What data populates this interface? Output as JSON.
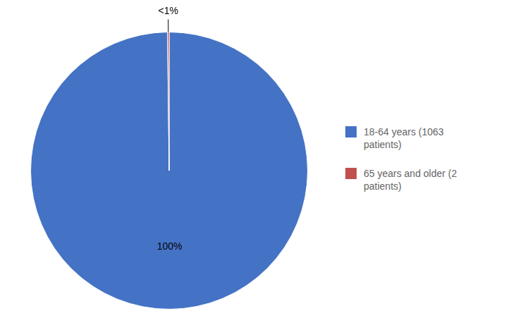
{
  "chart_data": {
    "type": "pie",
    "categories": [
      "18-64 years (1063\npatients)",
      "65 years and older (2\npatients)"
    ],
    "values": [
      99.81,
      0.19
    ],
    "value_labels": [
      "100%",
      "<1%"
    ],
    "colors": [
      "#4472C4",
      "#C0504D"
    ],
    "data_labels": true,
    "legend": "right"
  }
}
